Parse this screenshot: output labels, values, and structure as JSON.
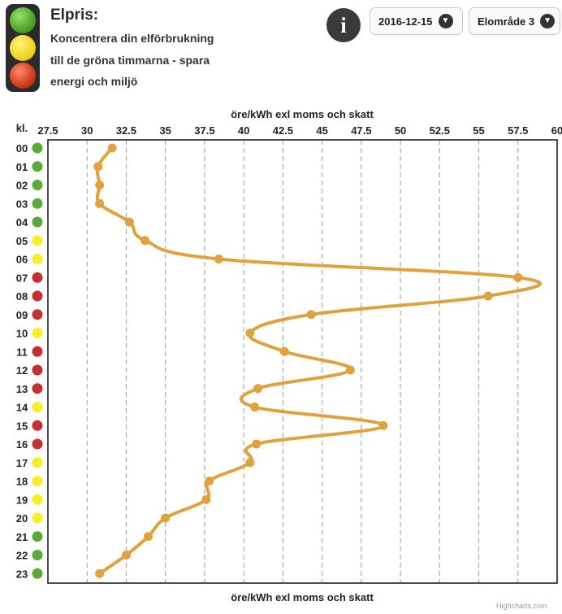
{
  "header": {
    "title": "Elpris:",
    "lines": [
      "Koncentrera din elförbrukning",
      "till de gröna timmarna - spara",
      "energi och miljö"
    ]
  },
  "controls": {
    "info_glyph": "i",
    "date_value": "2016-12-15",
    "area_value": "Elområde 3"
  },
  "icons": {
    "info": "info-icon",
    "dropdown": "chevron-down-icon",
    "traffic_light": "traffic-light-icon"
  },
  "colors": {
    "line": "#e0a23c",
    "green": "#5aaa3a",
    "yellow": "#f7ee2a",
    "red": "#c43030"
  },
  "chart_data": {
    "type": "line",
    "orientation": "horizontal",
    "title_top": "öre/kWh exl moms och skatt",
    "title_bottom": "öre/kWh exl moms och skatt",
    "category_axis_title": "kl.",
    "xlim": [
      27.5,
      60
    ],
    "x_ticks": [
      "27.5",
      "30",
      "32.5",
      "35",
      "37.5",
      "40",
      "42.5",
      "45",
      "47.5",
      "50",
      "52.5",
      "55",
      "57.5",
      "60"
    ],
    "x_tick_values": [
      27.5,
      30,
      32.5,
      35,
      37.5,
      40,
      42.5,
      45,
      47.5,
      50,
      52.5,
      55,
      57.5,
      60
    ],
    "grid": "vertical dashed",
    "categories": [
      "00",
      "01",
      "02",
      "03",
      "04",
      "05",
      "06",
      "07",
      "08",
      "09",
      "10",
      "11",
      "12",
      "13",
      "14",
      "15",
      "16",
      "17",
      "18",
      "19",
      "20",
      "21",
      "22",
      "23"
    ],
    "values": [
      31.6,
      30.7,
      30.8,
      30.8,
      32.7,
      33.7,
      38.4,
      57.5,
      55.6,
      44.3,
      40.4,
      42.6,
      46.8,
      40.9,
      40.7,
      48.9,
      40.8,
      40.4,
      37.8,
      37.6,
      35.0,
      33.9,
      32.5,
      30.8
    ],
    "levels": [
      "green",
      "green",
      "green",
      "green",
      "green",
      "yellow",
      "yellow",
      "red",
      "red",
      "red",
      "yellow",
      "red",
      "red",
      "red",
      "yellow",
      "red",
      "red",
      "yellow",
      "yellow",
      "yellow",
      "yellow",
      "green",
      "green",
      "green"
    ],
    "credits": "Highcharts.com"
  }
}
